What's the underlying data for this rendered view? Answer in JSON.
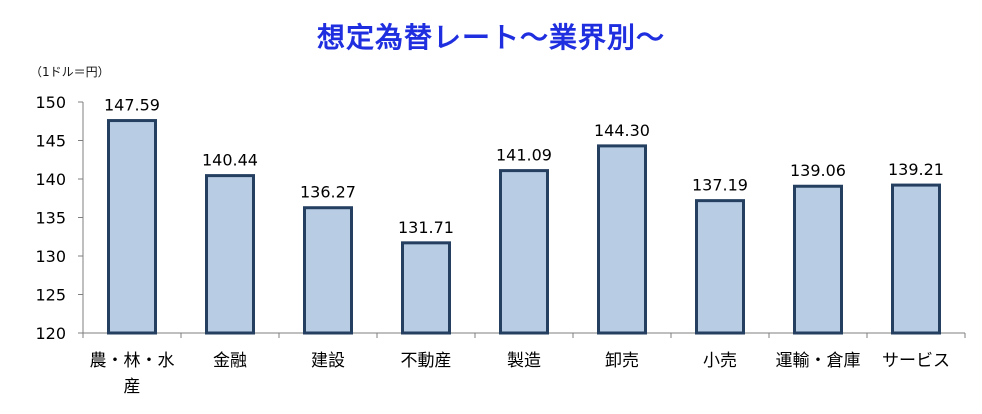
{
  "chart_data": {
    "type": "bar",
    "title": "想定為替レート～業界別～",
    "unit": "（1ドル＝円）",
    "categories": [
      [
        "農・林・水",
        "産"
      ],
      [
        "金融"
      ],
      [
        "建設"
      ],
      [
        "不動産"
      ],
      [
        "製造"
      ],
      [
        "卸売"
      ],
      [
        "小売"
      ],
      [
        "運輸・倉庫"
      ],
      [
        "サービス"
      ]
    ],
    "values": [
      147.59,
      140.44,
      136.27,
      131.71,
      141.09,
      144.3,
      137.19,
      139.06,
      139.21
    ],
    "value_labels": [
      "147.59",
      "140.44",
      "136.27",
      "131.71",
      "141.09",
      "144.30",
      "137.19",
      "139.06",
      "139.21"
    ],
    "ylim": [
      120,
      150
    ],
    "yticks": [
      120,
      125,
      130,
      135,
      140,
      145,
      150
    ],
    "grid": false,
    "colors": {
      "bar_fill": "#b8cce4",
      "bar_stroke": "#243f60",
      "title": "#1f2fe0",
      "axis": "#7f7f7f"
    }
  }
}
